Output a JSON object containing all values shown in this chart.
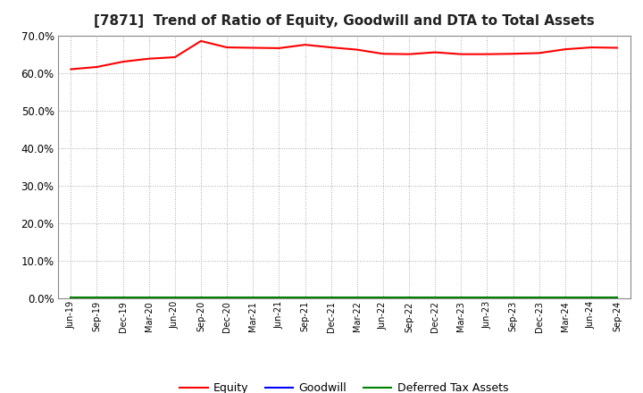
{
  "title": "[7871]  Trend of Ratio of Equity, Goodwill and DTA to Total Assets",
  "x_labels": [
    "Jun-19",
    "Sep-19",
    "Dec-19",
    "Mar-20",
    "Jun-20",
    "Sep-20",
    "Dec-20",
    "Mar-21",
    "Jun-21",
    "Sep-21",
    "Dec-21",
    "Mar-22",
    "Jun-22",
    "Sep-22",
    "Dec-22",
    "Mar-23",
    "Jun-23",
    "Sep-23",
    "Dec-23",
    "Mar-24",
    "Jun-24",
    "Sep-24"
  ],
  "equity": [
    0.61,
    0.616,
    0.63,
    0.638,
    0.642,
    0.685,
    0.668,
    0.667,
    0.666,
    0.675,
    0.668,
    0.662,
    0.651,
    0.65,
    0.655,
    0.65,
    0.65,
    0.651,
    0.653,
    0.663,
    0.668,
    0.667
  ],
  "goodwill": [
    0.0,
    0.0,
    0.0,
    0.0,
    0.0,
    0.0,
    0.0,
    0.0,
    0.0,
    0.0,
    0.0,
    0.0,
    0.0,
    0.0,
    0.0,
    0.0,
    0.0,
    0.0,
    0.0,
    0.0,
    0.0,
    0.0
  ],
  "dta": [
    0.004,
    0.004,
    0.004,
    0.004,
    0.004,
    0.004,
    0.004,
    0.004,
    0.004,
    0.004,
    0.004,
    0.004,
    0.004,
    0.004,
    0.004,
    0.004,
    0.004,
    0.004,
    0.004,
    0.004,
    0.004,
    0.004
  ],
  "equity_color": "#FF0000",
  "goodwill_color": "#0000FF",
  "dta_color": "#008000",
  "bg_color": "#FFFFFF",
  "plot_bg_color": "#FFFFFF",
  "grid_color": "#AAAAAA",
  "ylim": [
    0.0,
    0.7
  ],
  "yticks": [
    0.0,
    0.1,
    0.2,
    0.3,
    0.4,
    0.5,
    0.6,
    0.7
  ],
  "title_fontsize": 11,
  "legend_labels": [
    "Equity",
    "Goodwill",
    "Deferred Tax Assets"
  ]
}
